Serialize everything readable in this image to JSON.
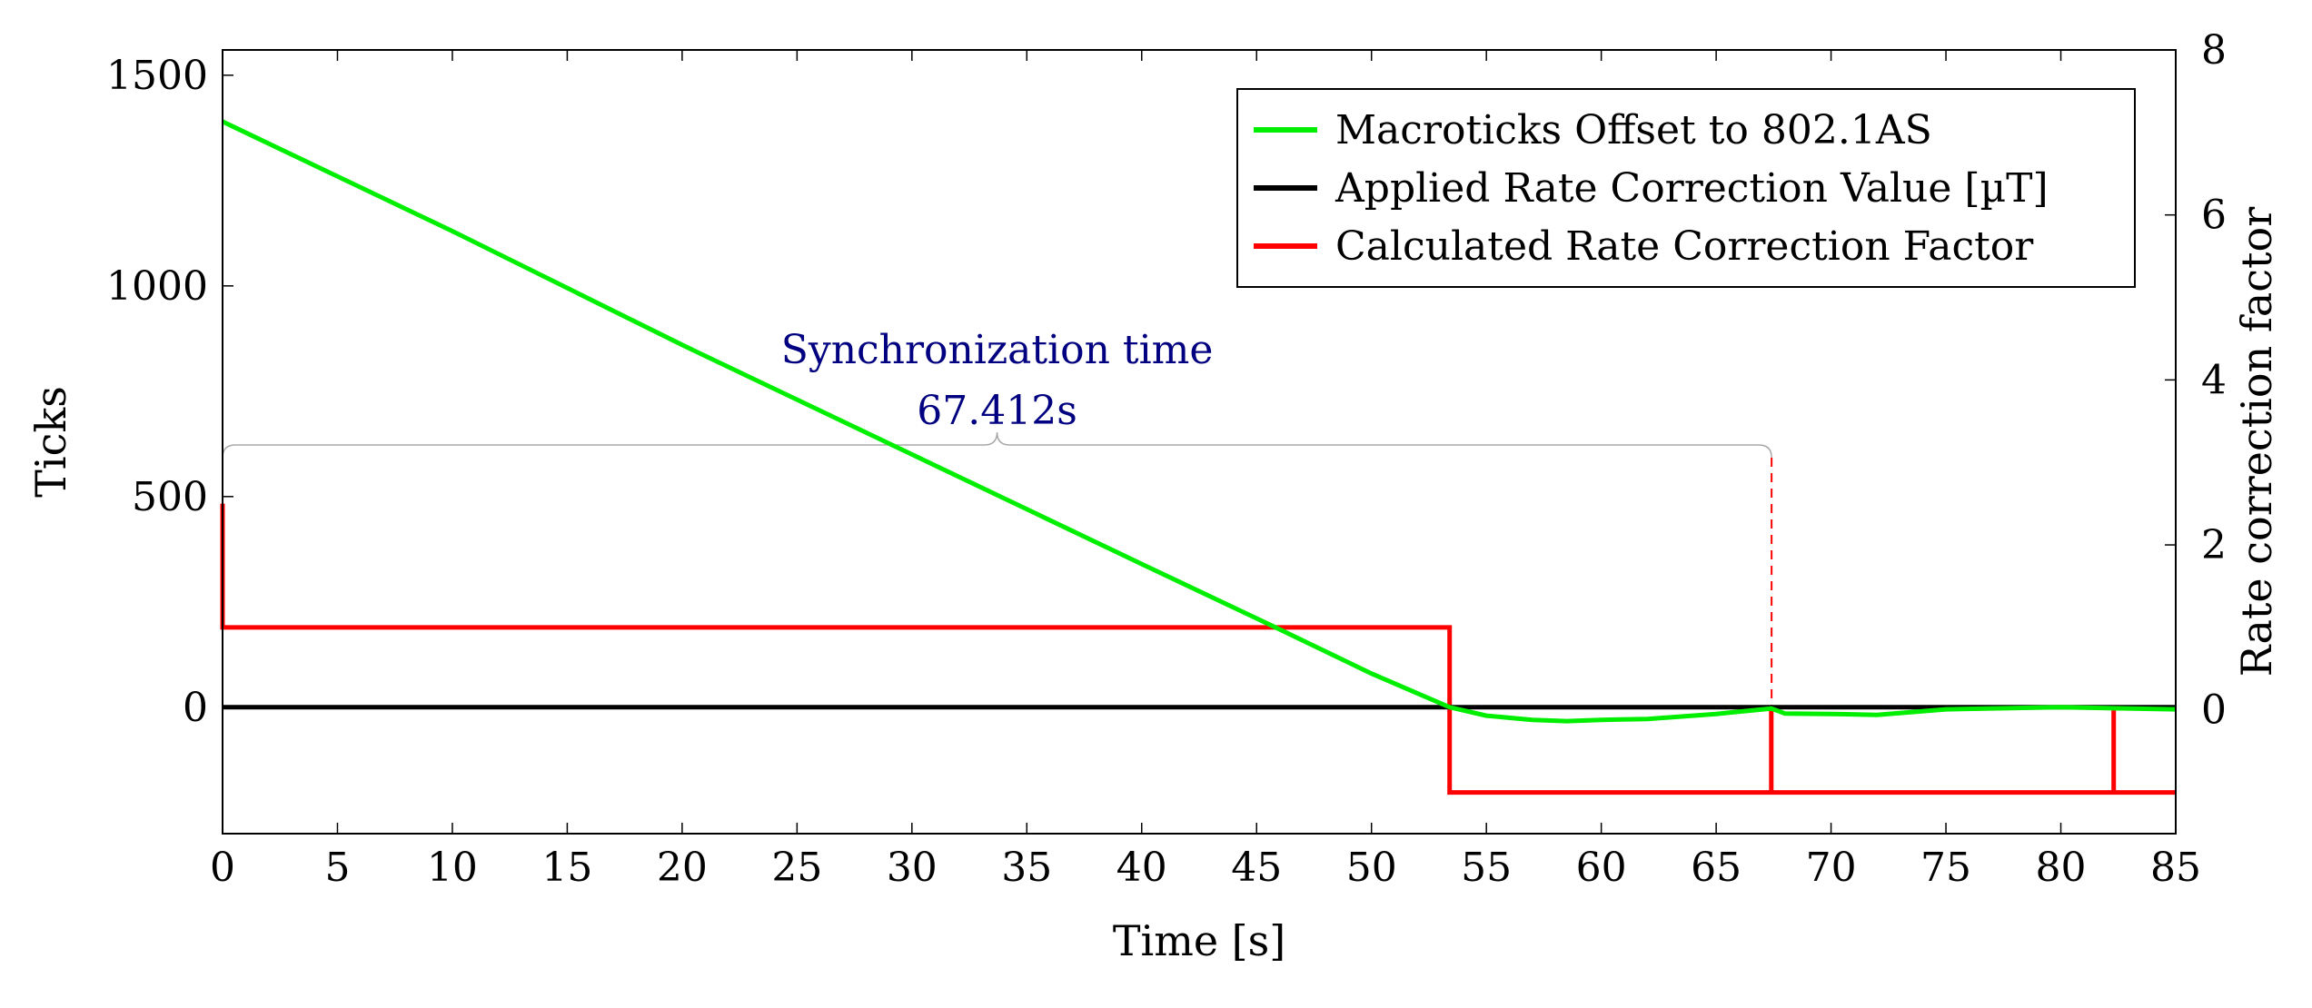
{
  "chart_data": {
    "type": "line",
    "x_axis": {
      "label": "Time [s]",
      "min": 0,
      "max": 85,
      "ticks": [
        0,
        5,
        10,
        15,
        20,
        25,
        30,
        35,
        40,
        45,
        50,
        55,
        60,
        65,
        70,
        75,
        80,
        85
      ]
    },
    "y_axis_left": {
      "label": "Ticks",
      "min": -300,
      "max": 1560,
      "ticks": [
        0,
        500,
        1000,
        1500
      ]
    },
    "y_axis_right": {
      "label": "Rate correction factor",
      "min": -1.5,
      "max": 8,
      "ticks": [
        0,
        2,
        4,
        6,
        8
      ]
    },
    "legend_position": "top-right",
    "series": [
      {
        "name": "Macroticks Offset to 802.1AS",
        "color": "#00ee00",
        "axis": "left",
        "x": [
          0,
          10,
          20,
          30,
          40,
          46,
          50,
          53.4,
          55,
          57,
          58.5,
          60,
          62,
          65,
          67.4,
          68,
          70,
          72,
          75,
          80,
          85
        ],
        "y": [
          1390,
          1130,
          860,
          600,
          340,
          185,
          80,
          0,
          -20,
          -30,
          -33,
          -30,
          -28,
          -16,
          -3,
          -15,
          -16,
          -18,
          -5,
          0,
          -5
        ]
      },
      {
        "name": "Applied Rate Correction Value [µT]",
        "color": "#000000",
        "axis": "left",
        "x": [
          0,
          85
        ],
        "y": [
          0,
          0
        ]
      },
      {
        "name": "Calculated Rate Correction Factor",
        "color": "#ff0000",
        "axis": "right",
        "x": [
          0,
          0,
          53.4,
          53.4,
          67.4,
          67.4,
          67.4,
          82.3,
          82.3,
          82.3,
          85
        ],
        "y": [
          2.5,
          1,
          1,
          -1,
          -1,
          0,
          -1,
          -1,
          0,
          -1,
          -1
        ]
      }
    ],
    "annotation": {
      "title": "Synchronization time",
      "value": "67.412s",
      "x_start": 0,
      "x_end": 67.412,
      "color": "#000080",
      "marker_color": "#ff0000"
    }
  }
}
